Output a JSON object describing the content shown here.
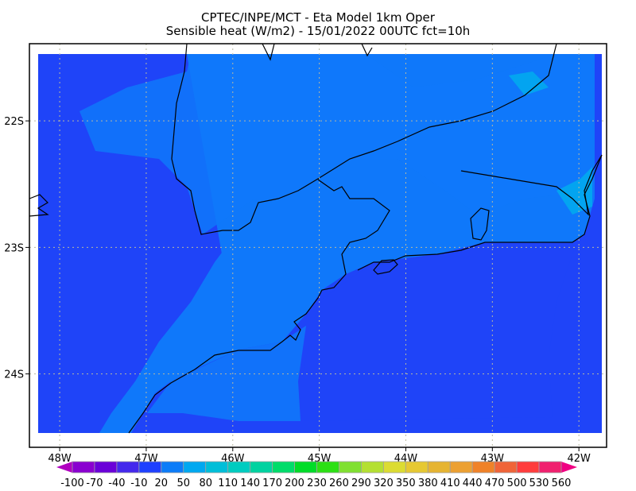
{
  "title": {
    "line1": "CPTEC/INPE/MCT -  Eta Model 1km Oper",
    "line2": "Sensible heat (W/m2) - 15/01/2022 00UTC fct=10h"
  },
  "map": {
    "lon_range": [
      -48.35,
      -41.68
    ],
    "lat_range": [
      -24.58,
      -21.39
    ],
    "lon_ticks": [
      {
        "value": -48,
        "label": "48W"
      },
      {
        "value": -47,
        "label": "47W"
      },
      {
        "value": -46,
        "label": "46W"
      },
      {
        "value": -45,
        "label": "45W"
      },
      {
        "value": -44,
        "label": "44W"
      },
      {
        "value": -43,
        "label": "43W"
      },
      {
        "value": -42,
        "label": "42W"
      }
    ],
    "lat_ticks": [
      {
        "value": -22,
        "label": "22S"
      },
      {
        "value": -23,
        "label": "23S"
      },
      {
        "value": -24,
        "label": "24S"
      }
    ],
    "grid": true,
    "field_colors": {
      "low": "#1f44f8",
      "mid": "#0f78fa",
      "high": "#03a4f0"
    }
  },
  "colorbar": {
    "levels": [
      "-100",
      "-70",
      "-40",
      "-10",
      "20",
      "50",
      "80",
      "110",
      "140",
      "170",
      "200",
      "230",
      "260",
      "290",
      "320",
      "350",
      "380",
      "410",
      "440",
      "470",
      "500",
      "530",
      "560"
    ],
    "colors": [
      "#8a00d0",
      "#6a00d8",
      "#4428ec",
      "#1e40ff",
      "#0c7cf8",
      "#00a8f0",
      "#00bed8",
      "#00ccc0",
      "#00d2a0",
      "#00dc6a",
      "#00dc28",
      "#2ce014",
      "#80e030",
      "#b4e032",
      "#dcdc32",
      "#e6c832",
      "#e6b432",
      "#eca032",
      "#f08228",
      "#f06438",
      "#ff3c3c",
      "#f0206e"
    ],
    "under_color": "#b000c0",
    "over_color": "#f00082"
  }
}
